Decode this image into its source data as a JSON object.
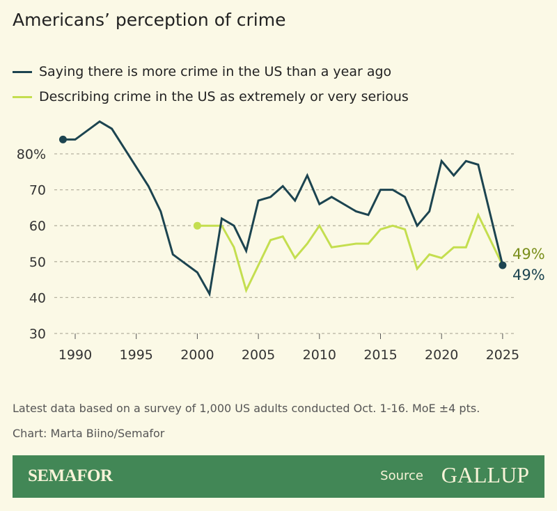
{
  "title": "Americans’ perception of crime",
  "footnote": "Latest data based on a survey of 1,000 US adults conducted Oct. 1-16. MoE ±4 pts.",
  "credit": "Chart: Marta Biino/Semafor",
  "footer": {
    "brand": "SEMAFOR",
    "source_label": "Source",
    "source": "GALLUP"
  },
  "colors": {
    "background": "#fbf9e6",
    "more_crime": "#1c4450",
    "serious": "#c4de4f",
    "serious_label": "#7a8f1c",
    "band": "#428756"
  },
  "chart_data": {
    "type": "line",
    "title": "Americans’ perception of crime",
    "xlim": [
      1989,
      2025
    ],
    "ylim": [
      30,
      90
    ],
    "x_ticks": [
      1990,
      1995,
      2000,
      2005,
      2010,
      2015,
      2020,
      2025
    ],
    "y_ticks": [
      {
        "v": 80,
        "label": "80%"
      },
      {
        "v": 70,
        "label": "70"
      },
      {
        "v": 60,
        "label": "60"
      },
      {
        "v": 50,
        "label": "50"
      },
      {
        "v": 40,
        "label": "40"
      },
      {
        "v": 30,
        "label": "30"
      }
    ],
    "grid": true,
    "legend": "top-left",
    "series": [
      {
        "name": "Saying there is more crime in the US than a year ago",
        "end_label": "49%",
        "x": [
          1989,
          1990,
          1992,
          1993,
          1996,
          1997,
          1998,
          2000,
          2001,
          2002,
          2003,
          2004,
          2005,
          2006,
          2007,
          2008,
          2009,
          2010,
          2011,
          2013,
          2014,
          2015,
          2016,
          2017,
          2018,
          2019,
          2020,
          2021,
          2022,
          2023,
          2025
        ],
        "y": [
          84,
          84,
          89,
          87,
          71,
          64,
          52,
          47,
          41,
          62,
          60,
          53,
          67,
          68,
          71,
          67,
          74,
          66,
          68,
          64,
          63,
          70,
          70,
          68,
          60,
          64,
          78,
          74,
          78,
          77,
          49
        ]
      },
      {
        "name": "Describing crime in the US as extremely or very serious",
        "end_label": "49%",
        "x": [
          2000,
          2002,
          2003,
          2004,
          2006,
          2007,
          2008,
          2009,
          2010,
          2011,
          2013,
          2014,
          2015,
          2016,
          2017,
          2018,
          2019,
          2020,
          2021,
          2022,
          2023,
          2025
        ],
        "y": [
          60,
          60,
          54,
          42,
          56,
          57,
          51,
          55,
          60,
          54,
          55,
          55,
          59,
          60,
          59,
          48,
          52,
          51,
          54,
          54,
          63,
          49
        ]
      }
    ]
  }
}
